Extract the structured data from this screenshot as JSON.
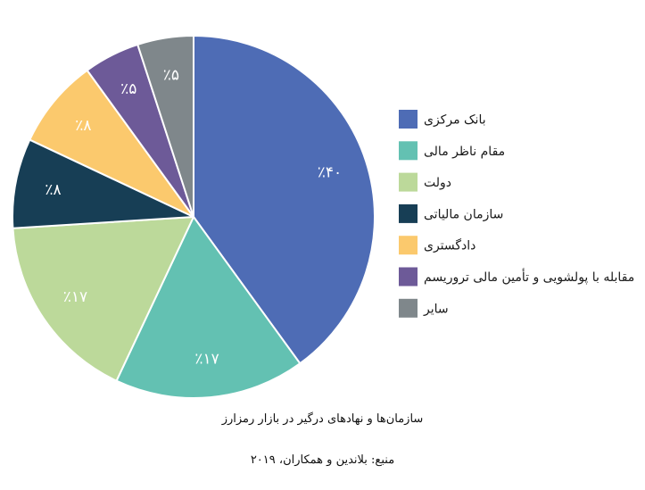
{
  "chart_data": {
    "type": "pie",
    "slices": [
      {
        "name": "بانک مرکزی",
        "value": 40,
        "label": "٪۴۰",
        "color": "#4e6cb5"
      },
      {
        "name": "مقام ناظر مالی",
        "value": 17,
        "label": "٪۱۷",
        "color": "#63c1b2"
      },
      {
        "name": "دولت",
        "value": 17,
        "label": "٪۱۷",
        "color": "#bcd99a"
      },
      {
        "name": "سازمان مالیاتی",
        "value": 8,
        "label": "٪۸",
        "color": "#173e55"
      },
      {
        "name": "دادگستری",
        "value": 8,
        "label": "٪۸",
        "color": "#fbc96d"
      },
      {
        "name": "مقابله با پولشویی و تأمین مالی تروریسم",
        "value": 5,
        "label": "٪۵",
        "color": "#6d5a98"
      },
      {
        "name": "سایر",
        "value": 5,
        "label": "٪۵",
        "color": "#7f878b"
      }
    ],
    "start_angle_deg": -90,
    "direction": "clockwise",
    "legend_position": "right",
    "title": "سازمان‌ها و نهادهای درگیر در بازار رمزارز",
    "source": "منبع: بلاندین و همکاران، ۲۰۱۹"
  }
}
